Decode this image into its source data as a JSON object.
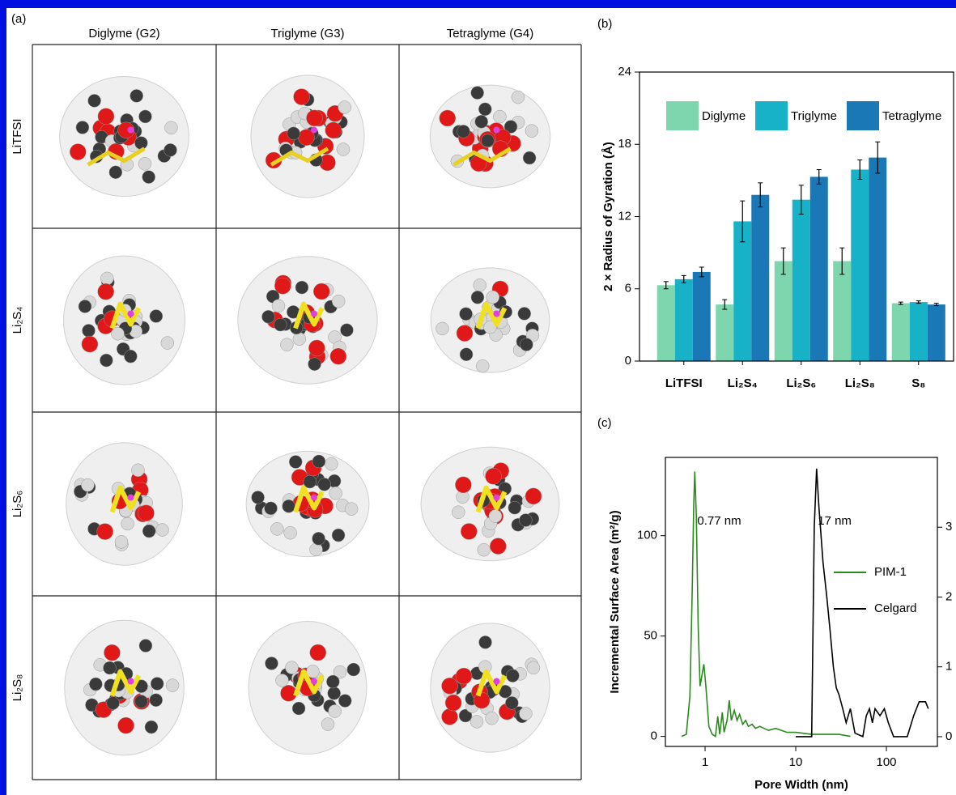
{
  "panel_a": {
    "label": "(a)",
    "columns": [
      "Diglyme (G2)",
      "Triglyme (G3)",
      "Tetraglyme (G4)"
    ],
    "rows": [
      "LiTFSI",
      "Li₂S₄",
      "Li₂S₆",
      "Li₂S₈"
    ]
  },
  "chart_data": [
    {
      "type": "bar",
      "label": "(b)",
      "ylabel": "2 × Radius of Gyration (Å)",
      "categories": [
        "LiTFSI",
        "Li₂S₄",
        "Li₂S₆",
        "Li₂S₈",
        "S₈"
      ],
      "series": [
        {
          "name": "Diglyme",
          "color": "#7dd6ae",
          "values": [
            6.3,
            4.7,
            8.3,
            8.3,
            4.8
          ],
          "errors": [
            0.3,
            0.4,
            1.1,
            1.1,
            0.1
          ]
        },
        {
          "name": "Triglyme",
          "color": "#18b2c8",
          "values": [
            6.8,
            11.6,
            13.4,
            15.9,
            4.9
          ],
          "errors": [
            0.3,
            1.7,
            1.2,
            0.8,
            0.1
          ]
        },
        {
          "name": "Tetraglyme",
          "color": "#1a78b6",
          "values": [
            7.4,
            13.8,
            15.3,
            16.9,
            4.7
          ],
          "errors": [
            0.4,
            1.0,
            0.6,
            1.3,
            0.1
          ]
        }
      ],
      "ylim": [
        0,
        24
      ],
      "yticks": [
        0,
        6,
        12,
        18,
        24
      ],
      "legend": "top"
    },
    {
      "type": "line",
      "label": "(c)",
      "xlabel": "Pore Width (nm)",
      "ylabel": "Incremental Surface Area (m²/g)",
      "xscale": "log",
      "xlim": [
        0.365,
        365
      ],
      "xticks": [
        1,
        10,
        100
      ],
      "ylim": [
        -5,
        139
      ],
      "yticks": [
        0,
        50,
        100
      ],
      "y2lim": [
        -0.14,
        4.0
      ],
      "y2ticks": [
        0,
        1,
        2,
        3
      ],
      "annotations": [
        {
          "text": "0.77 nm",
          "x": 0.82,
          "y": 112,
          "color": "#2a8a1e"
        },
        {
          "text": "17 nm",
          "x": 17.5,
          "y": 112,
          "color": "#000000"
        }
      ],
      "legend": "right",
      "series": [
        {
          "name": "PIM-1",
          "color": "#2a8a1e",
          "x": [
            0.55,
            0.62,
            0.68,
            0.72,
            0.75,
            0.77,
            0.8,
            0.84,
            0.88,
            0.92,
            0.97,
            1.02,
            1.1,
            1.2,
            1.3,
            1.38,
            1.45,
            1.55,
            1.62,
            1.75,
            1.85,
            1.95,
            2.1,
            2.25,
            2.4,
            2.6,
            2.8,
            3.0,
            3.3,
            3.6,
            4,
            5,
            6,
            8,
            10,
            15,
            20,
            30,
            40
          ],
          "values": [
            0,
            1,
            20,
            70,
            115,
            132,
            110,
            55,
            25,
            30,
            36,
            25,
            5,
            1,
            0,
            10,
            1,
            12,
            2,
            8,
            18,
            8,
            13,
            8,
            11,
            6,
            8,
            5,
            6,
            4,
            5,
            3,
            4,
            2,
            2,
            1,
            1,
            1,
            0
          ]
        },
        {
          "name": "Celgard",
          "color": "#000000",
          "axis": "y2",
          "x": [
            10,
            13,
            15,
            15.5,
            16,
            17,
            18,
            20,
            22,
            24,
            26,
            28,
            30,
            33,
            36,
            40,
            45,
            55,
            60,
            65,
            70,
            75,
            85,
            95,
            105,
            120,
            170,
            200,
            230,
            270,
            290
          ],
          "values": [
            0,
            0,
            0,
            1.5,
            3,
            3.84,
            3.3,
            2.5,
            2.0,
            1.5,
            1.0,
            0.7,
            0.6,
            0.4,
            0.2,
            0.4,
            0.05,
            0,
            0.3,
            0.4,
            0.2,
            0.4,
            0.3,
            0.4,
            0.2,
            0,
            0,
            0.3,
            0.5,
            0.5,
            0.4
          ]
        }
      ]
    }
  ]
}
